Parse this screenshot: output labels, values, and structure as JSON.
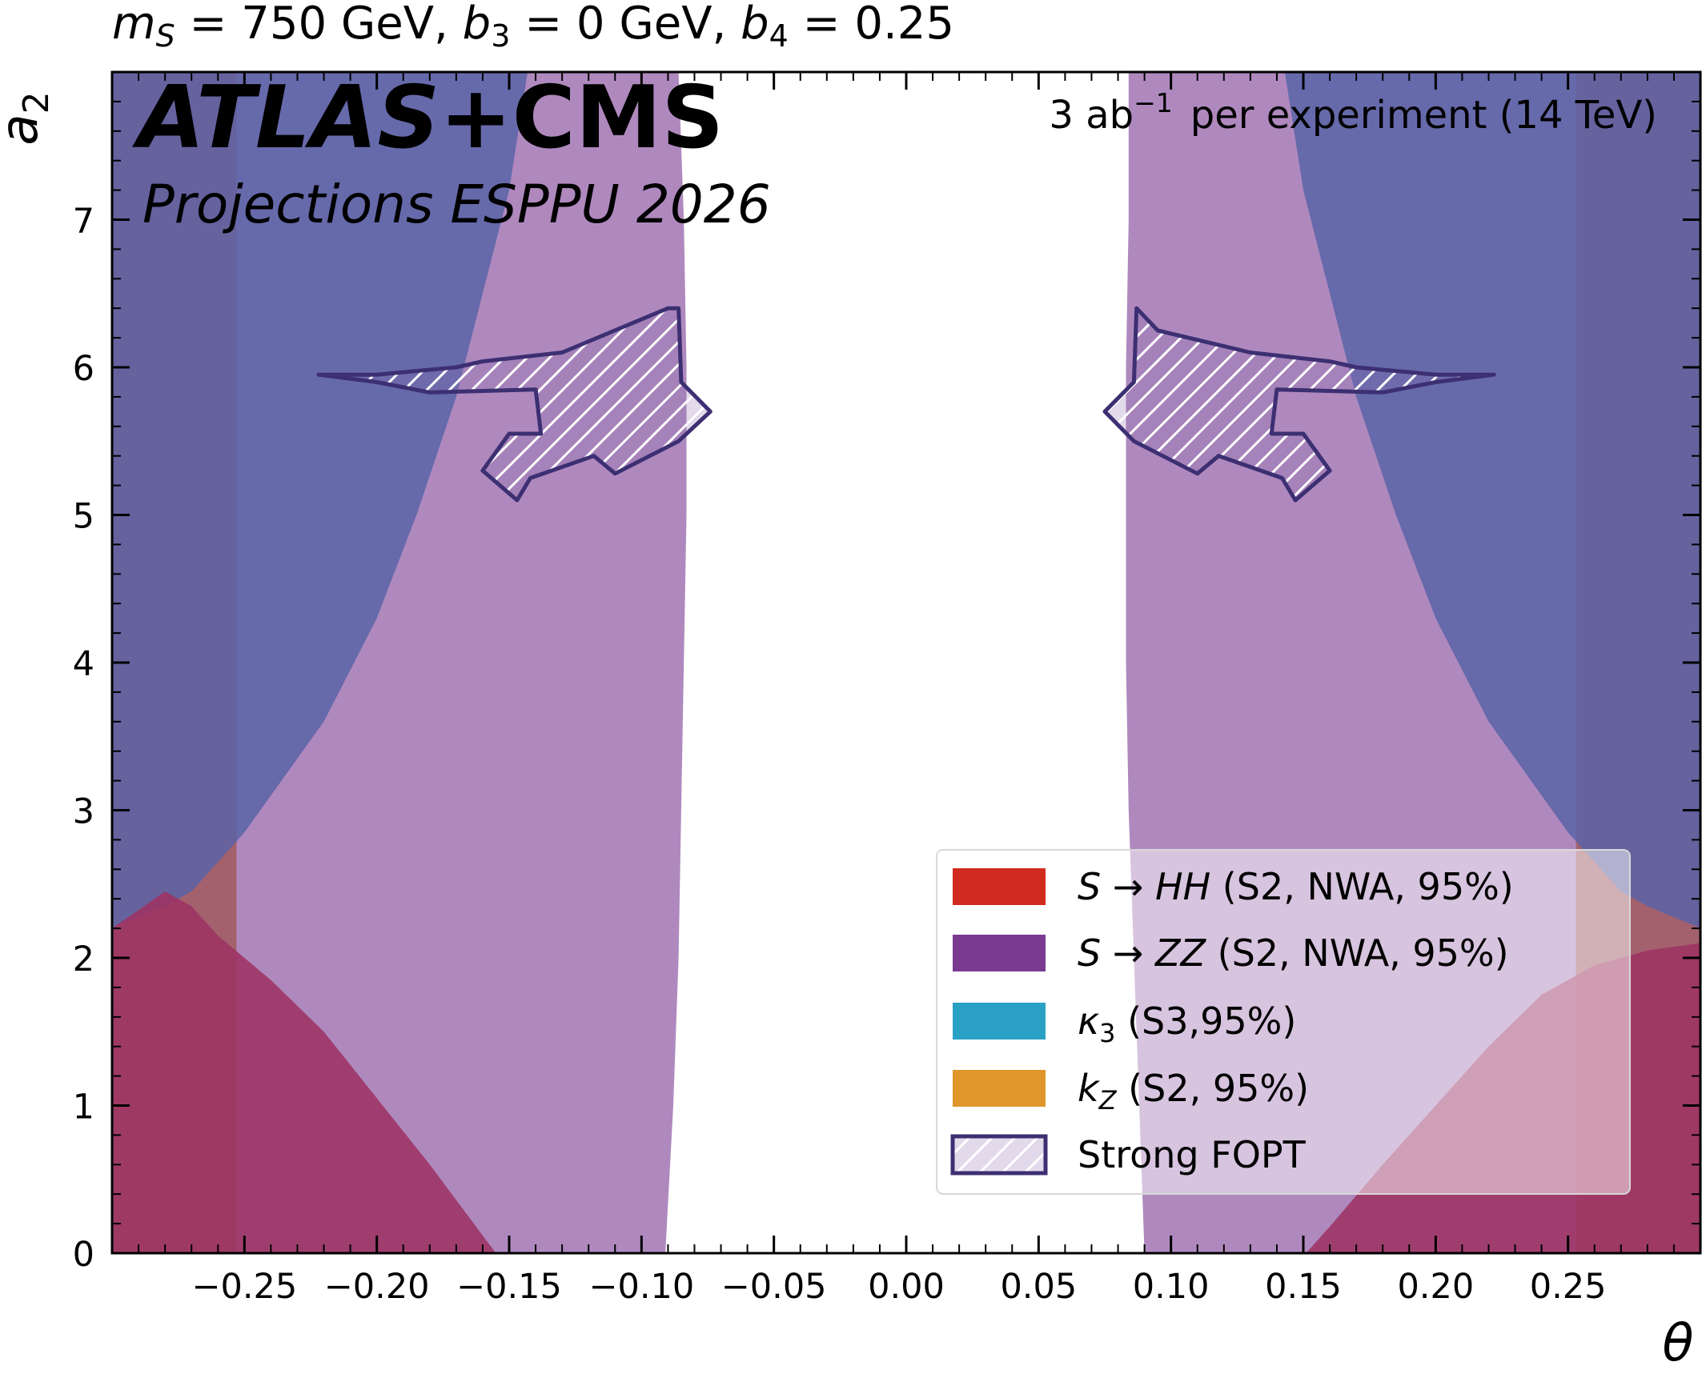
{
  "chart_data": {
    "type": "area",
    "title_pieces": {
      "ms_sym": "m",
      "ms_sub": "S",
      "ms_val": " = 750 GeV, ",
      "b3_sym": "b",
      "b3_sub": "3",
      "b3_val": " = 0 GeV, ",
      "b4_sym": "b",
      "b4_sub": "4",
      "b4_val": " = 0.25"
    },
    "experiment": {
      "atlas": "ATLAS",
      "plus_cms": "+CMS",
      "projection": "Projections ESPPU 2026",
      "lumi_value": "3 ab",
      "lumi_exp": "−1",
      "lumi_rest": "per experiment (14 TeV)"
    },
    "xlabel": "θ",
    "ylabel_sym": "a",
    "ylabel_sub": "2",
    "xlim": [
      -0.3,
      0.3
    ],
    "ylim": [
      0,
      8
    ],
    "xticks": [
      -0.25,
      -0.2,
      -0.15,
      -0.1,
      -0.05,
      0.0,
      0.05,
      0.1,
      0.15,
      0.2,
      0.25
    ],
    "xtick_labels": [
      "−0.25",
      "−0.20",
      "−0.15",
      "−0.10",
      "−0.05",
      "0.00",
      "0.05",
      "0.10",
      "0.15",
      "0.20",
      "0.25"
    ],
    "yticks": [
      0,
      1,
      2,
      3,
      4,
      5,
      6,
      7
    ],
    "ytick_labels": [
      "0",
      "1",
      "2",
      "3",
      "4",
      "5",
      "6",
      "7"
    ],
    "colors": {
      "hh": "#d12a1e",
      "zz": "#7a3a92",
      "k3": "#2aa0c4",
      "kz": "#e0962a",
      "fopt_edge": "#3c2f72",
      "fopt_fill": "#8a6ab0"
    },
    "regions": {
      "kz": {
        "left": [
          [
            -0.3,
            0
          ],
          [
            -0.253,
            0
          ],
          [
            -0.253,
            8
          ],
          [
            -0.3,
            8
          ]
        ],
        "right": [
          [
            0.253,
            0
          ],
          [
            0.3,
            0
          ],
          [
            0.3,
            8
          ],
          [
            0.253,
            8
          ]
        ]
      },
      "k3": {
        "left": [
          [
            -0.3,
            8
          ],
          [
            -0.3,
            2.2
          ],
          [
            -0.28,
            2.35
          ],
          [
            -0.27,
            2.45
          ],
          [
            -0.26,
            2.65
          ],
          [
            -0.25,
            2.85
          ],
          [
            -0.24,
            3.1
          ],
          [
            -0.22,
            3.6
          ],
          [
            -0.2,
            4.3
          ],
          [
            -0.185,
            5.0
          ],
          [
            -0.17,
            5.8
          ],
          [
            -0.16,
            6.5
          ],
          [
            -0.15,
            7.2
          ],
          [
            -0.143,
            8
          ]
        ],
        "right": [
          [
            0.3,
            8
          ],
          [
            0.3,
            2.2
          ],
          [
            0.28,
            2.35
          ],
          [
            0.27,
            2.45
          ],
          [
            0.26,
            2.65
          ],
          [
            0.25,
            2.85
          ],
          [
            0.24,
            3.1
          ],
          [
            0.22,
            3.6
          ],
          [
            0.2,
            4.3
          ],
          [
            0.185,
            5.0
          ],
          [
            0.17,
            5.8
          ],
          [
            0.16,
            6.5
          ],
          [
            0.15,
            7.2
          ],
          [
            0.143,
            8
          ]
        ]
      },
      "hh": {
        "left": [
          [
            -0.3,
            0
          ],
          [
            -0.155,
            0
          ],
          [
            -0.16,
            0.12
          ],
          [
            -0.18,
            0.6
          ],
          [
            -0.2,
            1.05
          ],
          [
            -0.22,
            1.5
          ],
          [
            -0.24,
            1.85
          ],
          [
            -0.26,
            2.15
          ],
          [
            -0.27,
            2.35
          ],
          [
            -0.28,
            2.45
          ],
          [
            -0.3,
            2.2
          ]
        ],
        "right": [
          [
            0.3,
            0
          ],
          [
            0.151,
            0
          ],
          [
            0.16,
            0.18
          ],
          [
            0.18,
            0.6
          ],
          [
            0.2,
            1.0
          ],
          [
            0.22,
            1.4
          ],
          [
            0.24,
            1.75
          ],
          [
            0.26,
            1.95
          ],
          [
            0.28,
            2.05
          ],
          [
            0.3,
            2.1
          ]
        ]
      },
      "zz": {
        "left": [
          [
            -0.3,
            0
          ],
          [
            -0.091,
            0
          ],
          [
            -0.088,
            1.0
          ],
          [
            -0.086,
            2.0
          ],
          [
            -0.085,
            3.0
          ],
          [
            -0.084,
            4.0
          ],
          [
            -0.083,
            5.0
          ],
          [
            -0.083,
            6.0
          ],
          [
            -0.084,
            7.0
          ],
          [
            -0.086,
            8
          ],
          [
            -0.3,
            8
          ]
        ],
        "right": [
          [
            0.3,
            0
          ],
          [
            0.09,
            0
          ],
          [
            0.088,
            1.0
          ],
          [
            0.086,
            2.0
          ],
          [
            0.084,
            3.0
          ],
          [
            0.083,
            4.0
          ],
          [
            0.083,
            5.0
          ],
          [
            0.083,
            6.0
          ],
          [
            0.084,
            7.0
          ],
          [
            0.084,
            8
          ],
          [
            0.3,
            8
          ]
        ]
      },
      "fopt": {
        "left": [
          [
            -0.222,
            5.95
          ],
          [
            -0.2,
            5.95
          ],
          [
            -0.17,
            6.0
          ],
          [
            -0.16,
            6.04
          ],
          [
            -0.13,
            6.1
          ],
          [
            -0.09,
            6.4
          ],
          [
            -0.086,
            6.4
          ],
          [
            -0.085,
            5.9
          ],
          [
            -0.074,
            5.7
          ],
          [
            -0.086,
            5.5
          ],
          [
            -0.11,
            5.28
          ],
          [
            -0.118,
            5.4
          ],
          [
            -0.142,
            5.25
          ],
          [
            -0.147,
            5.1
          ],
          [
            -0.16,
            5.3
          ],
          [
            -0.15,
            5.55
          ],
          [
            -0.138,
            5.55
          ],
          [
            -0.14,
            5.85
          ],
          [
            -0.18,
            5.83
          ],
          [
            -0.2,
            5.9
          ],
          [
            -0.222,
            5.95
          ]
        ],
        "right": [
          [
            0.222,
            5.95
          ],
          [
            0.2,
            5.95
          ],
          [
            0.17,
            6.0
          ],
          [
            0.16,
            6.04
          ],
          [
            0.13,
            6.1
          ],
          [
            0.095,
            6.25
          ],
          [
            0.087,
            6.4
          ],
          [
            0.086,
            5.9
          ],
          [
            0.075,
            5.7
          ],
          [
            0.086,
            5.5
          ],
          [
            0.11,
            5.28
          ],
          [
            0.118,
            5.4
          ],
          [
            0.142,
            5.25
          ],
          [
            0.147,
            5.1
          ],
          [
            0.16,
            5.3
          ],
          [
            0.15,
            5.55
          ],
          [
            0.138,
            5.55
          ],
          [
            0.14,
            5.85
          ],
          [
            0.18,
            5.83
          ],
          [
            0.2,
            5.9
          ],
          [
            0.222,
            5.95
          ]
        ]
      }
    },
    "legend": {
      "placement": "lower-right",
      "hh": {
        "s": "S",
        "arrow": " → ",
        "final": "HH",
        "rest": "  (S2, NWA, 95%)"
      },
      "zz": {
        "s": "S",
        "arrow": " → ",
        "final": "ZZ",
        "rest": "  (S2, NWA, 95%)"
      },
      "k3": {
        "sym": "κ",
        "sub": "3",
        "rest": "  (S3,95%)"
      },
      "kz": {
        "sym": "k",
        "sub": "Z",
        "rest": "  (S2, 95%)"
      },
      "fopt": {
        "label": "Strong FOPT"
      }
    }
  }
}
